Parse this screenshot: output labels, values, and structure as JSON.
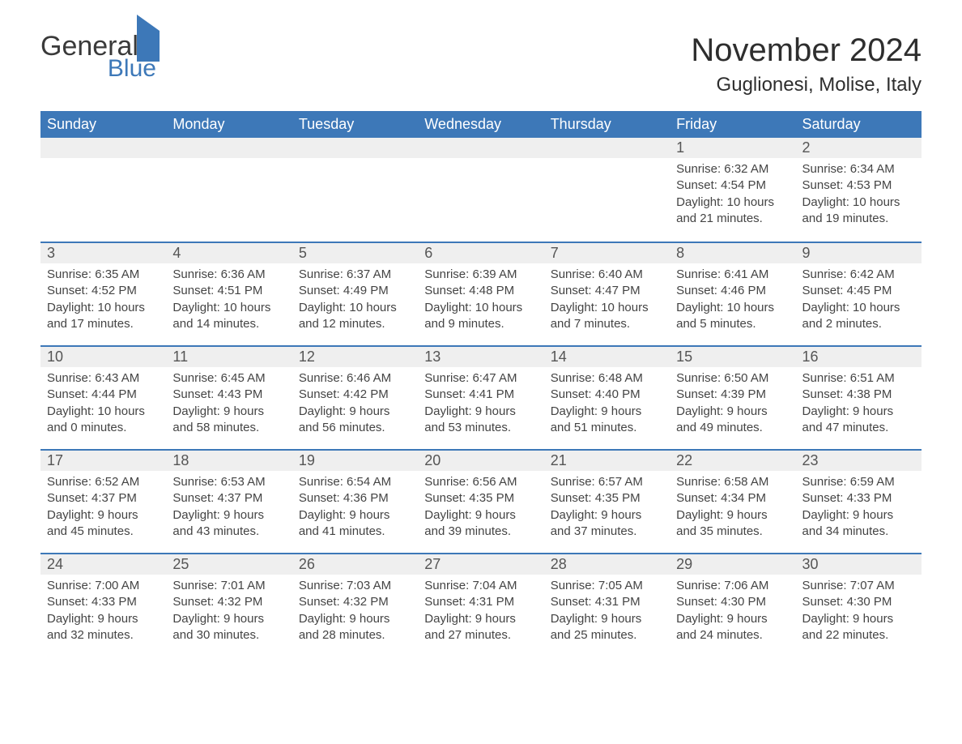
{
  "logo": {
    "text1": "General",
    "text2": "Blue"
  },
  "title": "November 2024",
  "location": "Guglionesi, Molise, Italy",
  "colors": {
    "header_bg": "#3d78b8",
    "header_text": "#ffffff",
    "daynum_bg": "#efefef",
    "border": "#3d78b8",
    "body_text": "#444444",
    "title_text": "#2e2e2e"
  },
  "weekdays": [
    "Sunday",
    "Monday",
    "Tuesday",
    "Wednesday",
    "Thursday",
    "Friday",
    "Saturday"
  ],
  "weeks": [
    [
      {
        "day": "",
        "lines": []
      },
      {
        "day": "",
        "lines": []
      },
      {
        "day": "",
        "lines": []
      },
      {
        "day": "",
        "lines": []
      },
      {
        "day": "",
        "lines": []
      },
      {
        "day": "1",
        "lines": [
          "Sunrise: 6:32 AM",
          "Sunset: 4:54 PM",
          "Daylight: 10 hours and 21 minutes."
        ]
      },
      {
        "day": "2",
        "lines": [
          "Sunrise: 6:34 AM",
          "Sunset: 4:53 PM",
          "Daylight: 10 hours and 19 minutes."
        ]
      }
    ],
    [
      {
        "day": "3",
        "lines": [
          "Sunrise: 6:35 AM",
          "Sunset: 4:52 PM",
          "Daylight: 10 hours and 17 minutes."
        ]
      },
      {
        "day": "4",
        "lines": [
          "Sunrise: 6:36 AM",
          "Sunset: 4:51 PM",
          "Daylight: 10 hours and 14 minutes."
        ]
      },
      {
        "day": "5",
        "lines": [
          "Sunrise: 6:37 AM",
          "Sunset: 4:49 PM",
          "Daylight: 10 hours and 12 minutes."
        ]
      },
      {
        "day": "6",
        "lines": [
          "Sunrise: 6:39 AM",
          "Sunset: 4:48 PM",
          "Daylight: 10 hours and 9 minutes."
        ]
      },
      {
        "day": "7",
        "lines": [
          "Sunrise: 6:40 AM",
          "Sunset: 4:47 PM",
          "Daylight: 10 hours and 7 minutes."
        ]
      },
      {
        "day": "8",
        "lines": [
          "Sunrise: 6:41 AM",
          "Sunset: 4:46 PM",
          "Daylight: 10 hours and 5 minutes."
        ]
      },
      {
        "day": "9",
        "lines": [
          "Sunrise: 6:42 AM",
          "Sunset: 4:45 PM",
          "Daylight: 10 hours and 2 minutes."
        ]
      }
    ],
    [
      {
        "day": "10",
        "lines": [
          "Sunrise: 6:43 AM",
          "Sunset: 4:44 PM",
          "Daylight: 10 hours and 0 minutes."
        ]
      },
      {
        "day": "11",
        "lines": [
          "Sunrise: 6:45 AM",
          "Sunset: 4:43 PM",
          "Daylight: 9 hours and 58 minutes."
        ]
      },
      {
        "day": "12",
        "lines": [
          "Sunrise: 6:46 AM",
          "Sunset: 4:42 PM",
          "Daylight: 9 hours and 56 minutes."
        ]
      },
      {
        "day": "13",
        "lines": [
          "Sunrise: 6:47 AM",
          "Sunset: 4:41 PM",
          "Daylight: 9 hours and 53 minutes."
        ]
      },
      {
        "day": "14",
        "lines": [
          "Sunrise: 6:48 AM",
          "Sunset: 4:40 PM",
          "Daylight: 9 hours and 51 minutes."
        ]
      },
      {
        "day": "15",
        "lines": [
          "Sunrise: 6:50 AM",
          "Sunset: 4:39 PM",
          "Daylight: 9 hours and 49 minutes."
        ]
      },
      {
        "day": "16",
        "lines": [
          "Sunrise: 6:51 AM",
          "Sunset: 4:38 PM",
          "Daylight: 9 hours and 47 minutes."
        ]
      }
    ],
    [
      {
        "day": "17",
        "lines": [
          "Sunrise: 6:52 AM",
          "Sunset: 4:37 PM",
          "Daylight: 9 hours and 45 minutes."
        ]
      },
      {
        "day": "18",
        "lines": [
          "Sunrise: 6:53 AM",
          "Sunset: 4:37 PM",
          "Daylight: 9 hours and 43 minutes."
        ]
      },
      {
        "day": "19",
        "lines": [
          "Sunrise: 6:54 AM",
          "Sunset: 4:36 PM",
          "Daylight: 9 hours and 41 minutes."
        ]
      },
      {
        "day": "20",
        "lines": [
          "Sunrise: 6:56 AM",
          "Sunset: 4:35 PM",
          "Daylight: 9 hours and 39 minutes."
        ]
      },
      {
        "day": "21",
        "lines": [
          "Sunrise: 6:57 AM",
          "Sunset: 4:35 PM",
          "Daylight: 9 hours and 37 minutes."
        ]
      },
      {
        "day": "22",
        "lines": [
          "Sunrise: 6:58 AM",
          "Sunset: 4:34 PM",
          "Daylight: 9 hours and 35 minutes."
        ]
      },
      {
        "day": "23",
        "lines": [
          "Sunrise: 6:59 AM",
          "Sunset: 4:33 PM",
          "Daylight: 9 hours and 34 minutes."
        ]
      }
    ],
    [
      {
        "day": "24",
        "lines": [
          "Sunrise: 7:00 AM",
          "Sunset: 4:33 PM",
          "Daylight: 9 hours and 32 minutes."
        ]
      },
      {
        "day": "25",
        "lines": [
          "Sunrise: 7:01 AM",
          "Sunset: 4:32 PM",
          "Daylight: 9 hours and 30 minutes."
        ]
      },
      {
        "day": "26",
        "lines": [
          "Sunrise: 7:03 AM",
          "Sunset: 4:32 PM",
          "Daylight: 9 hours and 28 minutes."
        ]
      },
      {
        "day": "27",
        "lines": [
          "Sunrise: 7:04 AM",
          "Sunset: 4:31 PM",
          "Daylight: 9 hours and 27 minutes."
        ]
      },
      {
        "day": "28",
        "lines": [
          "Sunrise: 7:05 AM",
          "Sunset: 4:31 PM",
          "Daylight: 9 hours and 25 minutes."
        ]
      },
      {
        "day": "29",
        "lines": [
          "Sunrise: 7:06 AM",
          "Sunset: 4:30 PM",
          "Daylight: 9 hours and 24 minutes."
        ]
      },
      {
        "day": "30",
        "lines": [
          "Sunrise: 7:07 AM",
          "Sunset: 4:30 PM",
          "Daylight: 9 hours and 22 minutes."
        ]
      }
    ]
  ]
}
